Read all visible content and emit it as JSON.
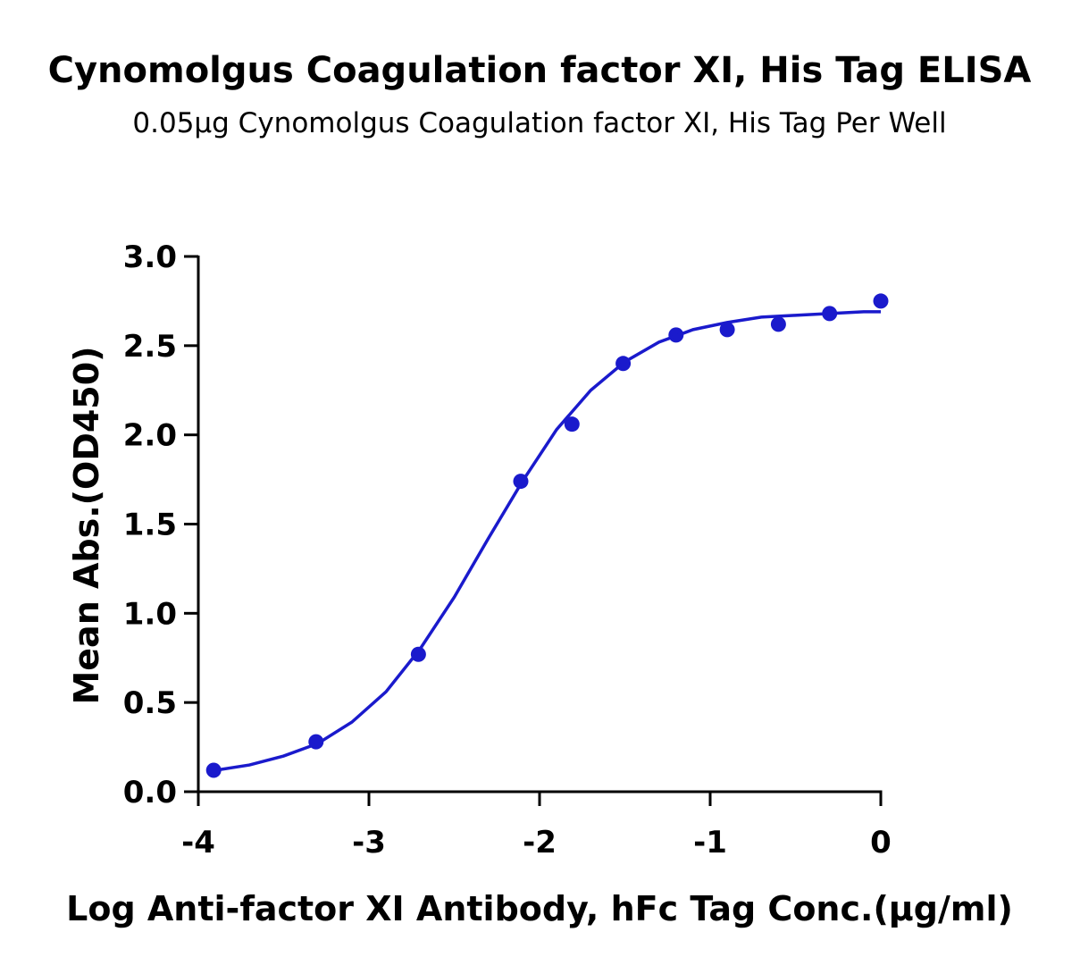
{
  "chart_data": {
    "type": "scatter",
    "title": "Cynomolgus Coagulation factor XI, His Tag ELISA",
    "subtitle": "0.05μg Cynomolgus Coagulation factor XI, His Tag Per Well",
    "x_label": "Log Anti-factor XI Antibody, hFc Tag Conc.(μg/ml)",
    "y_label": "Mean Abs.(OD450)",
    "xlim": [
      -4,
      0
    ],
    "xticks": [
      -4,
      -3,
      -2,
      -1,
      0
    ],
    "ylim": [
      0,
      3
    ],
    "yticks": [
      {
        "value": 0,
        "label": "0.0"
      },
      0.5,
      {
        "value": 1,
        "label": "1.0"
      },
      1.5,
      {
        "value": 2,
        "label": "2.0"
      },
      2.5,
      {
        "value": 3,
        "label": "3.0"
      }
    ],
    "series": [
      {
        "kind": "points",
        "color": "#1a1acc",
        "x": [
          -3.91,
          -3.31,
          -2.71,
          -2.11,
          -1.81,
          -1.51,
          -1.2,
          -0.9,
          -0.6,
          -0.3,
          0
        ],
        "values": [
          0.12,
          0.28,
          0.77,
          1.74,
          2.06,
          2.4,
          2.56,
          2.59,
          2.62,
          2.68,
          2.75
        ]
      },
      {
        "kind": "fit",
        "color": "#1a1acc",
        "x": [
          -3.9,
          -3.7,
          -3.5,
          -3.3,
          -3.1,
          -2.9,
          -2.7,
          -2.5,
          -2.3,
          -2.1,
          -1.9,
          -1.7,
          -1.5,
          -1.3,
          -1.1,
          -0.9,
          -0.7,
          -0.5,
          -0.3,
          -0.1,
          0
        ],
        "values": [
          0.12,
          0.15,
          0.2,
          0.27,
          0.39,
          0.56,
          0.8,
          1.09,
          1.42,
          1.74,
          2.03,
          2.25,
          2.41,
          2.52,
          2.59,
          2.63,
          2.66,
          2.67,
          2.68,
          2.69,
          2.69
        ]
      }
    ]
  }
}
